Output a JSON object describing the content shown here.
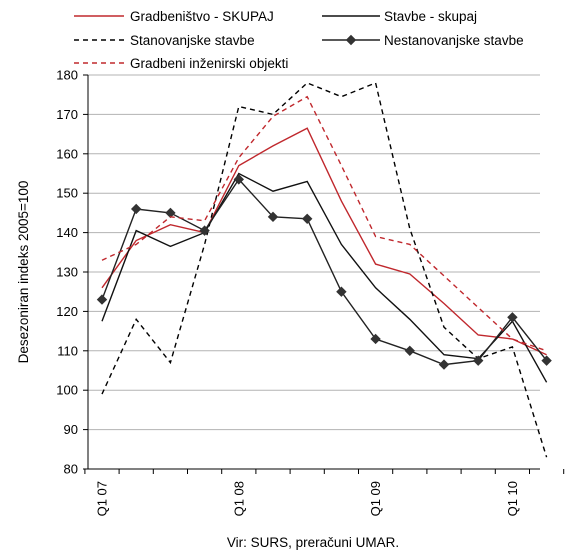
{
  "chart_data": {
    "type": "line",
    "ylabel": "Desezoniran indeks 2005=100",
    "source_note": "Vir: SURS, preračuni UMAR.",
    "ylim": [
      80,
      180
    ],
    "yticks": [
      80,
      90,
      100,
      110,
      120,
      130,
      140,
      150,
      160,
      170,
      180
    ],
    "xtick_labels": [
      "Q1 07",
      "Q1 08",
      "Q1 09",
      "Q1 10"
    ],
    "xtick_index": [
      0,
      4,
      8,
      12
    ],
    "grid": "horizontal",
    "legend_position": "top",
    "n_points": 14,
    "series": [
      {
        "name": "Gradbeništvo - SKUPAJ",
        "color": "#C0282D",
        "dash": "solid",
        "marker": "none",
        "values": [
          126,
          138,
          142,
          140,
          157,
          162,
          166.5,
          148,
          132,
          129.5,
          122,
          114,
          113,
          109
        ]
      },
      {
        "name": "Stavbe - skupaj",
        "color": "#111111",
        "dash": "solid",
        "marker": "none",
        "values": [
          117.5,
          140.5,
          136.5,
          140,
          155,
          150.5,
          153,
          137,
          126,
          118,
          109,
          108,
          117.5,
          102
        ]
      },
      {
        "name": "Stanovanjske stavbe",
        "color": "#000000",
        "dash": "dashed",
        "marker": "none",
        "values": [
          99,
          118,
          107,
          137,
          172,
          170,
          178,
          174.5,
          178,
          141,
          116,
          108,
          111,
          83
        ]
      },
      {
        "name": "Nestanovanjske stavbe",
        "color": "#222222",
        "dash": "solid",
        "marker": "diamond",
        "values": [
          123,
          146,
          145,
          140.5,
          153.5,
          144,
          143.5,
          125,
          113,
          110,
          106.5,
          107.5,
          118.5,
          107.5
        ]
      },
      {
        "name": "Gradbeni inženirski objekti",
        "color": "#C0282D",
        "dash": "dashed",
        "marker": "none",
        "values": [
          133,
          137,
          144,
          143,
          159,
          169.5,
          174.5,
          157,
          139,
          137,
          129,
          121,
          113,
          110
        ]
      }
    ]
  }
}
